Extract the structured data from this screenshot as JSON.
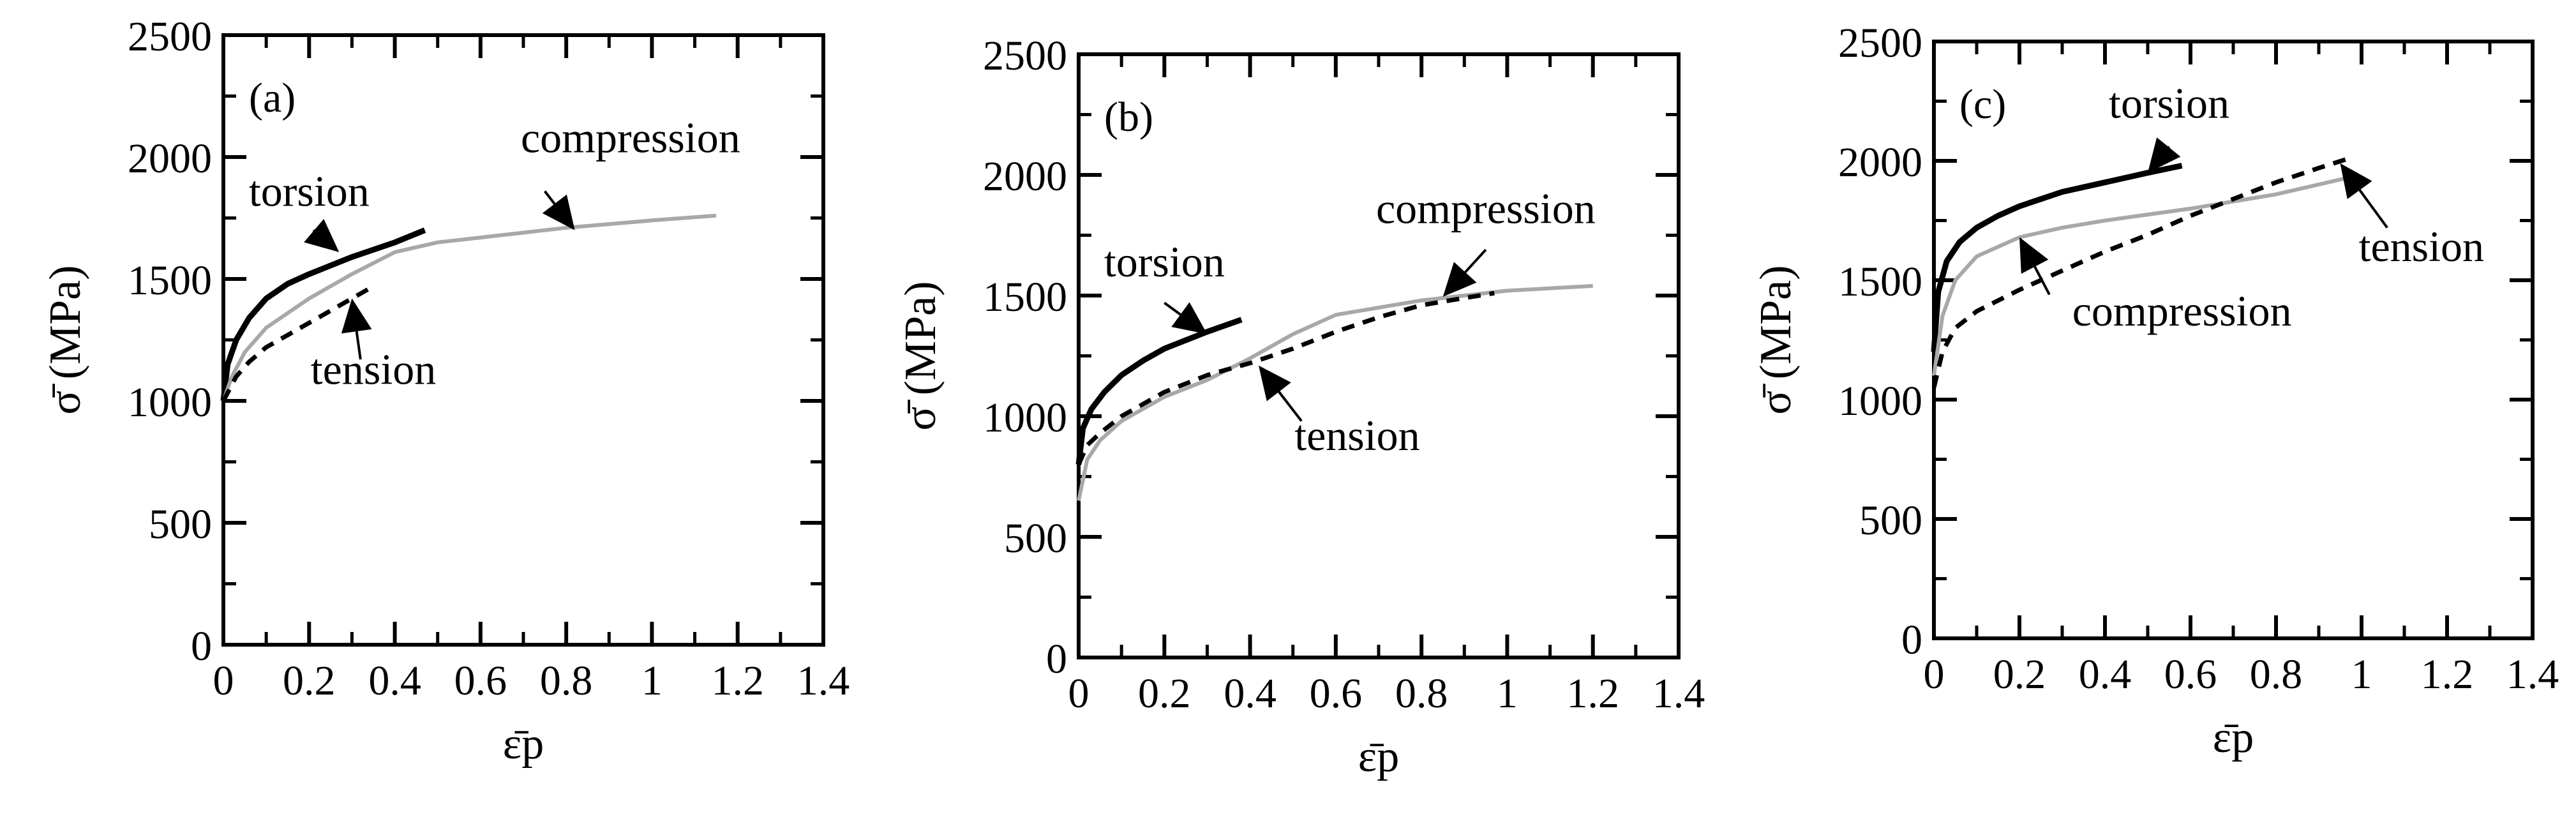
{
  "figure": {
    "panels": [
      {
        "id": "a",
        "label": "(a)"
      },
      {
        "id": "b",
        "label": "(b)"
      },
      {
        "id": "c",
        "label": "(c)"
      }
    ]
  },
  "chart_data": [
    {
      "type": "line",
      "panel_label": "(a)",
      "ylabel": "σ̄ (MPa)",
      "xlabel": "ε̄p",
      "xlim": [
        0,
        1.4
      ],
      "ylim": [
        0,
        2500
      ],
      "x_ticks": [
        "0",
        "0.2",
        "0.4",
        "0.6",
        "0.8",
        "1",
        "1.2",
        "1.4"
      ],
      "y_ticks": [
        "0",
        "500",
        "1000",
        "1500",
        "2000",
        "2500"
      ],
      "grid": false,
      "series": [
        {
          "name": "torsion",
          "style": "solid-black",
          "points": [
            [
              0,
              1000
            ],
            [
              0.01,
              1150
            ],
            [
              0.03,
              1250
            ],
            [
              0.06,
              1340
            ],
            [
              0.1,
              1420
            ],
            [
              0.15,
              1480
            ],
            [
              0.2,
              1520
            ],
            [
              0.3,
              1590
            ],
            [
              0.4,
              1650
            ],
            [
              0.47,
              1700
            ]
          ]
        },
        {
          "name": "compression",
          "style": "solid-gray",
          "points": [
            [
              0,
              1000
            ],
            [
              0.02,
              1100
            ],
            [
              0.05,
              1200
            ],
            [
              0.1,
              1300
            ],
            [
              0.2,
              1420
            ],
            [
              0.3,
              1520
            ],
            [
              0.4,
              1610
            ],
            [
              0.5,
              1650
            ],
            [
              0.6,
              1670
            ],
            [
              0.8,
              1710
            ],
            [
              1.0,
              1740
            ],
            [
              1.15,
              1760
            ]
          ]
        },
        {
          "name": "tension",
          "style": "dashed-black",
          "points": [
            [
              0,
              1000
            ],
            [
              0.03,
              1100
            ],
            [
              0.06,
              1160
            ],
            [
              0.1,
              1220
            ],
            [
              0.15,
              1270
            ],
            [
              0.2,
              1320
            ],
            [
              0.25,
              1370
            ],
            [
              0.3,
              1420
            ],
            [
              0.35,
              1470
            ]
          ]
        }
      ],
      "annotations": [
        {
          "text": "torsion",
          "at": [
            0.2,
            1800
          ]
        },
        {
          "text": "compression",
          "at": [
            0.95,
            2020
          ]
        },
        {
          "text": "tension",
          "at": [
            0.35,
            1070
          ]
        }
      ]
    },
    {
      "type": "line",
      "panel_label": "(b)",
      "ylabel": "σ̄ (MPa)",
      "xlabel": "ε̄p",
      "xlim": [
        0,
        1.4
      ],
      "ylim": [
        0,
        2500
      ],
      "x_ticks": [
        "0",
        "0.2",
        "0.4",
        "0.6",
        "0.8",
        "1",
        "1.2",
        "1.4"
      ],
      "y_ticks": [
        "0",
        "500",
        "1000",
        "1500",
        "2000",
        "2500"
      ],
      "grid": false,
      "series": [
        {
          "name": "torsion",
          "style": "solid-black",
          "points": [
            [
              0,
              800
            ],
            [
              0.01,
              950
            ],
            [
              0.03,
              1030
            ],
            [
              0.06,
              1100
            ],
            [
              0.1,
              1170
            ],
            [
              0.15,
              1230
            ],
            [
              0.2,
              1280
            ],
            [
              0.3,
              1350
            ],
            [
              0.38,
              1400
            ]
          ]
        },
        {
          "name": "compression",
          "style": "solid-gray",
          "points": [
            [
              0,
              650
            ],
            [
              0.02,
              820
            ],
            [
              0.05,
              900
            ],
            [
              0.1,
              980
            ],
            [
              0.2,
              1080
            ],
            [
              0.3,
              1150
            ],
            [
              0.4,
              1240
            ],
            [
              0.5,
              1340
            ],
            [
              0.6,
              1420
            ],
            [
              0.8,
              1480
            ],
            [
              1.0,
              1520
            ],
            [
              1.2,
              1540
            ]
          ]
        },
        {
          "name": "tension",
          "style": "dashed-black",
          "points": [
            [
              0,
              800
            ],
            [
              0.02,
              880
            ],
            [
              0.05,
              930
            ],
            [
              0.1,
              1000
            ],
            [
              0.2,
              1100
            ],
            [
              0.3,
              1170
            ],
            [
              0.4,
              1220
            ],
            [
              0.5,
              1280
            ],
            [
              0.6,
              1350
            ],
            [
              0.7,
              1410
            ],
            [
              0.8,
              1460
            ],
            [
              0.9,
              1490
            ],
            [
              0.97,
              1510
            ]
          ]
        }
      ],
      "annotations": [
        {
          "text": "torsion",
          "at": [
            0.2,
            1580
          ]
        },
        {
          "text": "compression",
          "at": [
            0.95,
            1800
          ]
        },
        {
          "text": "tension",
          "at": [
            0.65,
            860
          ]
        }
      ]
    },
    {
      "type": "line",
      "panel_label": "(c)",
      "ylabel": "σ̄ (MPa)",
      "xlabel": "ε̄p",
      "xlim": [
        0,
        1.4
      ],
      "ylim": [
        0,
        2500
      ],
      "x_ticks": [
        "0",
        "0.2",
        "0.4",
        "0.6",
        "0.8",
        "1",
        "1.2",
        "1.4"
      ],
      "y_ticks": [
        "0",
        "500",
        "1000",
        "1500",
        "2000",
        "2500"
      ],
      "grid": false,
      "series": [
        {
          "name": "torsion",
          "style": "solid-black",
          "points": [
            [
              0,
              1200
            ],
            [
              0.01,
              1450
            ],
            [
              0.03,
              1580
            ],
            [
              0.06,
              1660
            ],
            [
              0.1,
              1720
            ],
            [
              0.15,
              1770
            ],
            [
              0.2,
              1810
            ],
            [
              0.3,
              1870
            ],
            [
              0.4,
              1910
            ],
            [
              0.5,
              1950
            ],
            [
              0.58,
              1980
            ]
          ]
        },
        {
          "name": "compression",
          "style": "solid-gray",
          "points": [
            [
              0,
              1100
            ],
            [
              0.02,
              1350
            ],
            [
              0.05,
              1500
            ],
            [
              0.1,
              1600
            ],
            [
              0.2,
              1680
            ],
            [
              0.3,
              1720
            ],
            [
              0.4,
              1750
            ],
            [
              0.6,
              1800
            ],
            [
              0.8,
              1860
            ],
            [
              0.97,
              1930
            ]
          ]
        },
        {
          "name": "tension",
          "style": "dashed-black",
          "points": [
            [
              0,
              1050
            ],
            [
              0.02,
              1200
            ],
            [
              0.05,
              1300
            ],
            [
              0.1,
              1370
            ],
            [
              0.2,
              1460
            ],
            [
              0.3,
              1540
            ],
            [
              0.4,
              1620
            ],
            [
              0.5,
              1690
            ],
            [
              0.6,
              1770
            ],
            [
              0.7,
              1840
            ],
            [
              0.8,
              1910
            ],
            [
              0.9,
              1970
            ],
            [
              0.97,
              2010
            ]
          ]
        }
      ],
      "annotations": [
        {
          "text": "torsion",
          "at": [
            0.55,
            2180
          ]
        },
        {
          "text": "compression",
          "at": [
            0.58,
            1310
          ]
        },
        {
          "text": "tension",
          "at": [
            1.14,
            1580
          ]
        }
      ]
    }
  ]
}
